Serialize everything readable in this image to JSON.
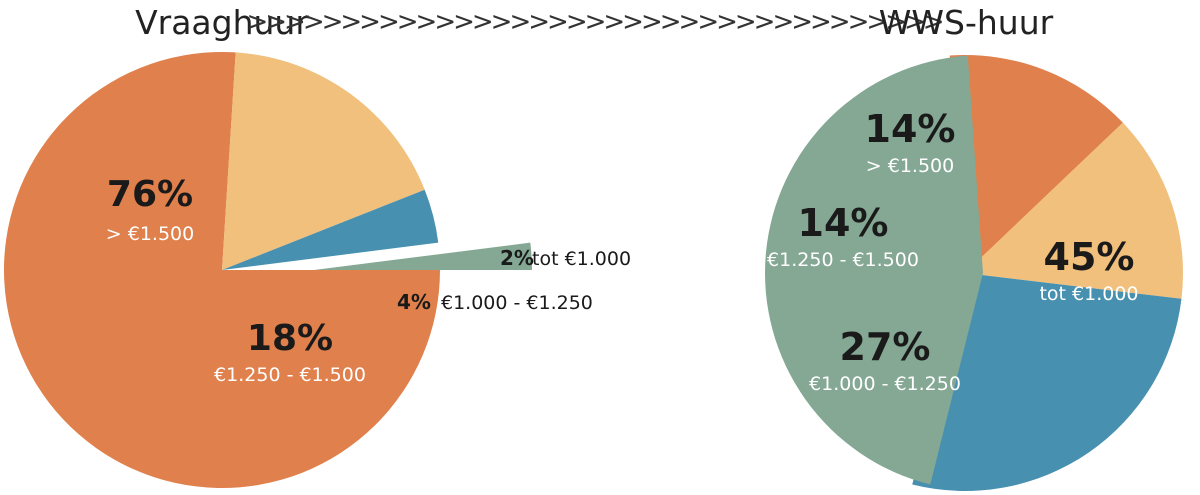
{
  "chart_data": [
    {
      "type": "pie",
      "title": "Vraaghuur",
      "slices": [
        {
          "percent_label": "76%",
          "category": "> €1.500",
          "value": 76,
          "color": "#E0804C"
        },
        {
          "percent_label": "18%",
          "category": "€1.250 - €1.500",
          "value": 18,
          "color": "#F0C07C"
        },
        {
          "percent_label": "4%",
          "category": "€1.000 - €1.250",
          "value": 4,
          "color": "#4790B0"
        },
        {
          "percent_label": "2%",
          "category": "tot €1.000",
          "value": 2,
          "color": "#84A894"
        }
      ]
    },
    {
      "type": "pie",
      "title": "WWS-huur",
      "slices": [
        {
          "percent_label": "14%",
          "category": "> €1.500",
          "value": 14,
          "color": "#E0804C"
        },
        {
          "percent_label": "14%",
          "category": "€1.250 - €1.500",
          "value": 14,
          "color": "#F0C07C"
        },
        {
          "percent_label": "27%",
          "category": "€1.000 - €1.250",
          "value": 27,
          "color": "#4790B0"
        },
        {
          "percent_label": "45%",
          "category": "tot €1.000",
          "value": 45,
          "color": "#84A894"
        }
      ]
    }
  ],
  "connector": {
    "text": ">>>>>>>>>>>>>>>>>>>>>>>>>>>>>>>>>>>>>"
  }
}
